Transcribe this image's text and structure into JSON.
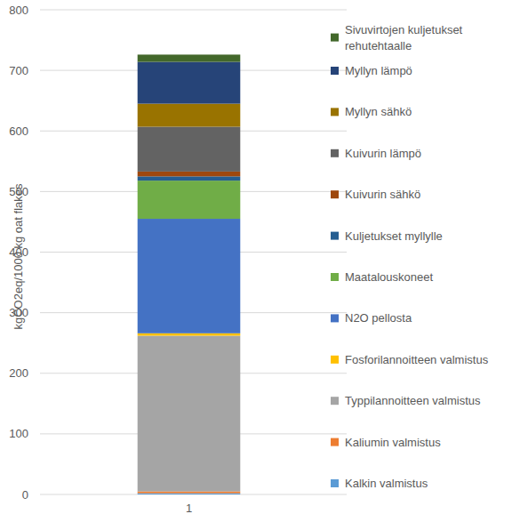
{
  "chart_data": {
    "type": "bar",
    "stacked": true,
    "grid": true,
    "legend": "right",
    "y_label": "kgCO2eq/1000 kg oat flakes",
    "categories": [
      "1"
    ],
    "ylim": [
      0,
      800
    ],
    "yticks": [
      0,
      100,
      200,
      300,
      400,
      500,
      600,
      700,
      800
    ],
    "series": [
      {
        "name": "Kalkin valmistus",
        "color": "#5b9bd5",
        "values": [
          2
        ]
      },
      {
        "name": "Kaliumin valmistus",
        "color": "#ed7d31",
        "values": [
          3
        ]
      },
      {
        "name": "Typpilannoitteen valmistus",
        "color": "#a5a5a5",
        "values": [
          257
        ]
      },
      {
        "name": "Fosforilannoitteen valmistus",
        "color": "#ffc000",
        "values": [
          4
        ]
      },
      {
        "name": "N2O pellosta",
        "color": "#4472c4",
        "values": [
          189
        ]
      },
      {
        "name": "Maatalouskoneet",
        "color": "#70ad47",
        "values": [
          63
        ]
      },
      {
        "name": "Kuljetukset myllylle",
        "color": "#255e91",
        "values": [
          7
        ]
      },
      {
        "name": "Kuivurin sähkö",
        "color": "#9e480e",
        "values": [
          8
        ]
      },
      {
        "name": "Kuivurin lämpö",
        "color": "#636363",
        "values": [
          74
        ]
      },
      {
        "name": "Myllyn sähkö",
        "color": "#997300",
        "values": [
          38
        ]
      },
      {
        "name": "Myllyn lämpö",
        "color": "#264478",
        "values": [
          69
        ]
      },
      {
        "name": "Sivuvirtojen kuljetukset rehutehtaalle",
        "color": "#43682b",
        "values": [
          12
        ]
      }
    ]
  }
}
